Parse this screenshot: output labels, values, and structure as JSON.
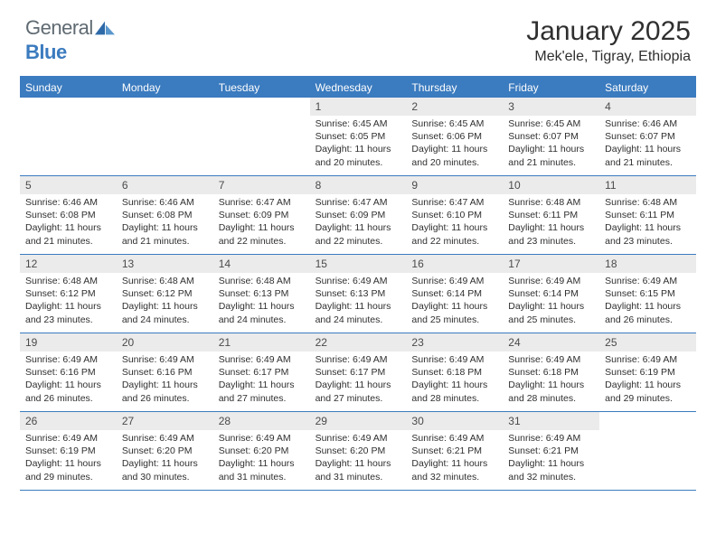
{
  "logo": {
    "text1": "General",
    "text2": "Blue"
  },
  "title": "January 2025",
  "location": "Mek'ele, Tigray, Ethiopia",
  "header_bg": "#3b7bbf",
  "daynum_bg": "#ebebeb",
  "weekdays": [
    "Sunday",
    "Monday",
    "Tuesday",
    "Wednesday",
    "Thursday",
    "Friday",
    "Saturday"
  ],
  "weeks": [
    [
      {
        "n": "",
        "sr": "",
        "ss": "",
        "dl1": "",
        "dl2": "",
        "empty": true
      },
      {
        "n": "",
        "sr": "",
        "ss": "",
        "dl1": "",
        "dl2": "",
        "empty": true
      },
      {
        "n": "",
        "sr": "",
        "ss": "",
        "dl1": "",
        "dl2": "",
        "empty": true
      },
      {
        "n": "1",
        "sr": "Sunrise: 6:45 AM",
        "ss": "Sunset: 6:05 PM",
        "dl1": "Daylight: 11 hours",
        "dl2": "and 20 minutes."
      },
      {
        "n": "2",
        "sr": "Sunrise: 6:45 AM",
        "ss": "Sunset: 6:06 PM",
        "dl1": "Daylight: 11 hours",
        "dl2": "and 20 minutes."
      },
      {
        "n": "3",
        "sr": "Sunrise: 6:45 AM",
        "ss": "Sunset: 6:07 PM",
        "dl1": "Daylight: 11 hours",
        "dl2": "and 21 minutes."
      },
      {
        "n": "4",
        "sr": "Sunrise: 6:46 AM",
        "ss": "Sunset: 6:07 PM",
        "dl1": "Daylight: 11 hours",
        "dl2": "and 21 minutes."
      }
    ],
    [
      {
        "n": "5",
        "sr": "Sunrise: 6:46 AM",
        "ss": "Sunset: 6:08 PM",
        "dl1": "Daylight: 11 hours",
        "dl2": "and 21 minutes."
      },
      {
        "n": "6",
        "sr": "Sunrise: 6:46 AM",
        "ss": "Sunset: 6:08 PM",
        "dl1": "Daylight: 11 hours",
        "dl2": "and 21 minutes."
      },
      {
        "n": "7",
        "sr": "Sunrise: 6:47 AM",
        "ss": "Sunset: 6:09 PM",
        "dl1": "Daylight: 11 hours",
        "dl2": "and 22 minutes."
      },
      {
        "n": "8",
        "sr": "Sunrise: 6:47 AM",
        "ss": "Sunset: 6:09 PM",
        "dl1": "Daylight: 11 hours",
        "dl2": "and 22 minutes."
      },
      {
        "n": "9",
        "sr": "Sunrise: 6:47 AM",
        "ss": "Sunset: 6:10 PM",
        "dl1": "Daylight: 11 hours",
        "dl2": "and 22 minutes."
      },
      {
        "n": "10",
        "sr": "Sunrise: 6:48 AM",
        "ss": "Sunset: 6:11 PM",
        "dl1": "Daylight: 11 hours",
        "dl2": "and 23 minutes."
      },
      {
        "n": "11",
        "sr": "Sunrise: 6:48 AM",
        "ss": "Sunset: 6:11 PM",
        "dl1": "Daylight: 11 hours",
        "dl2": "and 23 minutes."
      }
    ],
    [
      {
        "n": "12",
        "sr": "Sunrise: 6:48 AM",
        "ss": "Sunset: 6:12 PM",
        "dl1": "Daylight: 11 hours",
        "dl2": "and 23 minutes."
      },
      {
        "n": "13",
        "sr": "Sunrise: 6:48 AM",
        "ss": "Sunset: 6:12 PM",
        "dl1": "Daylight: 11 hours",
        "dl2": "and 24 minutes."
      },
      {
        "n": "14",
        "sr": "Sunrise: 6:48 AM",
        "ss": "Sunset: 6:13 PM",
        "dl1": "Daylight: 11 hours",
        "dl2": "and 24 minutes."
      },
      {
        "n": "15",
        "sr": "Sunrise: 6:49 AM",
        "ss": "Sunset: 6:13 PM",
        "dl1": "Daylight: 11 hours",
        "dl2": "and 24 minutes."
      },
      {
        "n": "16",
        "sr": "Sunrise: 6:49 AM",
        "ss": "Sunset: 6:14 PM",
        "dl1": "Daylight: 11 hours",
        "dl2": "and 25 minutes."
      },
      {
        "n": "17",
        "sr": "Sunrise: 6:49 AM",
        "ss": "Sunset: 6:14 PM",
        "dl1": "Daylight: 11 hours",
        "dl2": "and 25 minutes."
      },
      {
        "n": "18",
        "sr": "Sunrise: 6:49 AM",
        "ss": "Sunset: 6:15 PM",
        "dl1": "Daylight: 11 hours",
        "dl2": "and 26 minutes."
      }
    ],
    [
      {
        "n": "19",
        "sr": "Sunrise: 6:49 AM",
        "ss": "Sunset: 6:16 PM",
        "dl1": "Daylight: 11 hours",
        "dl2": "and 26 minutes."
      },
      {
        "n": "20",
        "sr": "Sunrise: 6:49 AM",
        "ss": "Sunset: 6:16 PM",
        "dl1": "Daylight: 11 hours",
        "dl2": "and 26 minutes."
      },
      {
        "n": "21",
        "sr": "Sunrise: 6:49 AM",
        "ss": "Sunset: 6:17 PM",
        "dl1": "Daylight: 11 hours",
        "dl2": "and 27 minutes."
      },
      {
        "n": "22",
        "sr": "Sunrise: 6:49 AM",
        "ss": "Sunset: 6:17 PM",
        "dl1": "Daylight: 11 hours",
        "dl2": "and 27 minutes."
      },
      {
        "n": "23",
        "sr": "Sunrise: 6:49 AM",
        "ss": "Sunset: 6:18 PM",
        "dl1": "Daylight: 11 hours",
        "dl2": "and 28 minutes."
      },
      {
        "n": "24",
        "sr": "Sunrise: 6:49 AM",
        "ss": "Sunset: 6:18 PM",
        "dl1": "Daylight: 11 hours",
        "dl2": "and 28 minutes."
      },
      {
        "n": "25",
        "sr": "Sunrise: 6:49 AM",
        "ss": "Sunset: 6:19 PM",
        "dl1": "Daylight: 11 hours",
        "dl2": "and 29 minutes."
      }
    ],
    [
      {
        "n": "26",
        "sr": "Sunrise: 6:49 AM",
        "ss": "Sunset: 6:19 PM",
        "dl1": "Daylight: 11 hours",
        "dl2": "and 29 minutes."
      },
      {
        "n": "27",
        "sr": "Sunrise: 6:49 AM",
        "ss": "Sunset: 6:20 PM",
        "dl1": "Daylight: 11 hours",
        "dl2": "and 30 minutes."
      },
      {
        "n": "28",
        "sr": "Sunrise: 6:49 AM",
        "ss": "Sunset: 6:20 PM",
        "dl1": "Daylight: 11 hours",
        "dl2": "and 31 minutes."
      },
      {
        "n": "29",
        "sr": "Sunrise: 6:49 AM",
        "ss": "Sunset: 6:20 PM",
        "dl1": "Daylight: 11 hours",
        "dl2": "and 31 minutes."
      },
      {
        "n": "30",
        "sr": "Sunrise: 6:49 AM",
        "ss": "Sunset: 6:21 PM",
        "dl1": "Daylight: 11 hours",
        "dl2": "and 32 minutes."
      },
      {
        "n": "31",
        "sr": "Sunrise: 6:49 AM",
        "ss": "Sunset: 6:21 PM",
        "dl1": "Daylight: 11 hours",
        "dl2": "and 32 minutes."
      },
      {
        "n": "",
        "sr": "",
        "ss": "",
        "dl1": "",
        "dl2": "",
        "empty": true
      }
    ]
  ]
}
